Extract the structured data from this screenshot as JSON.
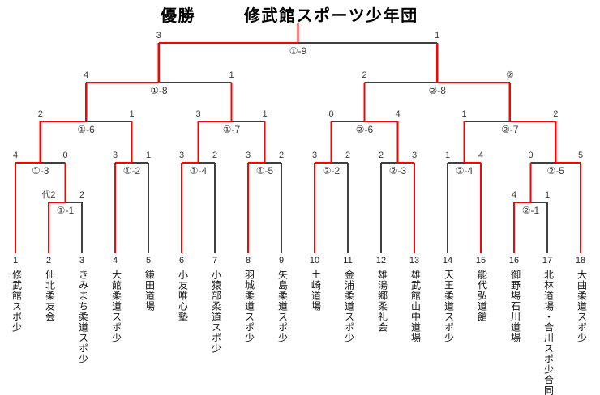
{
  "title": {
    "champion_label": "優勝",
    "champion_name": "修武館スポーツ少年団"
  },
  "colors": {
    "winner_path": "#ff0000",
    "line": "#3f3f3f"
  },
  "teams": [
    {
      "no": "1",
      "name": "修武館スポ少"
    },
    {
      "no": "2",
      "name": "仙北柔友会"
    },
    {
      "no": "3",
      "name": "きみまち柔道スポ少"
    },
    {
      "no": "4",
      "name": "大館柔道スポ少"
    },
    {
      "no": "5",
      "name": "鎌田道場"
    },
    {
      "no": "6",
      "name": "小友唯心塾"
    },
    {
      "no": "7",
      "name": "小猿部柔道スポ少"
    },
    {
      "no": "8",
      "name": "羽城柔道スポ少"
    },
    {
      "no": "9",
      "name": "矢島柔道スポ少"
    },
    {
      "no": "10",
      "name": "土崎道場"
    },
    {
      "no": "11",
      "name": "金浦柔道スポ少"
    },
    {
      "no": "12",
      "name": "雄湯郷柔礼会"
    },
    {
      "no": "13",
      "name": "雄武館山中道場"
    },
    {
      "no": "14",
      "name": "天王柔道スポ少"
    },
    {
      "no": "15",
      "name": "能代弘道館"
    },
    {
      "no": "16",
      "name": "御野場石川道場"
    },
    {
      "no": "17",
      "name": "北林道場・合川スポ少合同"
    },
    {
      "no": "18",
      "name": "大曲柔道スポ少"
    }
  ],
  "matches": [
    {
      "id": "1-1",
      "label": "①-1",
      "round": 1,
      "left": "t2",
      "right": "t3",
      "score_left": "代2",
      "score_right": "2",
      "winner": "left"
    },
    {
      "id": "2-1",
      "label": "②-1",
      "round": 1,
      "left": "t16",
      "right": "t17",
      "score_left": "4",
      "score_right": "1",
      "winner": "left"
    },
    {
      "id": "1-2",
      "label": "①-2",
      "round": 2,
      "left": "t4",
      "right": "t5",
      "score_left": "3",
      "score_right": "1",
      "winner": "left"
    },
    {
      "id": "1-3",
      "label": "①-3",
      "round": 2,
      "left": "t1",
      "right": "m:1-1",
      "score_left": "4",
      "score_right": "0",
      "winner": "left"
    },
    {
      "id": "1-4",
      "label": "①-4",
      "round": 2,
      "left": "t6",
      "right": "t7",
      "score_left": "3",
      "score_right": "2",
      "winner": "left"
    },
    {
      "id": "1-5",
      "label": "①-5",
      "round": 2,
      "left": "t8",
      "right": "t9",
      "score_left": "3",
      "score_right": "2",
      "winner": "left"
    },
    {
      "id": "2-2",
      "label": "②-2",
      "round": 2,
      "left": "t10",
      "right": "t11",
      "score_left": "3",
      "score_right": "2",
      "winner": "left"
    },
    {
      "id": "2-3",
      "label": "②-3",
      "round": 2,
      "left": "t12",
      "right": "t13",
      "score_left": "2",
      "score_right": "3",
      "winner": "right"
    },
    {
      "id": "2-4",
      "label": "②-4",
      "round": 2,
      "left": "t14",
      "right": "t15",
      "score_left": "1",
      "score_right": "4",
      "winner": "right"
    },
    {
      "id": "2-5",
      "label": "②-5",
      "round": 2,
      "left": "m:2-1",
      "right": "t18",
      "score_left": "0",
      "score_right": "5",
      "winner": "right"
    },
    {
      "id": "1-6",
      "label": "①-6",
      "round": 3,
      "left": "m:1-3",
      "right": "m:1-2",
      "score_left": "2",
      "score_right": "1",
      "winner": "left"
    },
    {
      "id": "1-7",
      "label": "①-7",
      "round": 3,
      "left": "m:1-4",
      "right": "m:1-5",
      "score_left": "3",
      "score_right": "1",
      "winner": "left"
    },
    {
      "id": "2-6",
      "label": "②-6",
      "round": 3,
      "left": "m:2-2",
      "right": "m:2-3",
      "score_left": "0",
      "score_right": "4",
      "winner": "right"
    },
    {
      "id": "2-7",
      "label": "②-7",
      "round": 3,
      "left": "m:2-4",
      "right": "m:2-5",
      "score_left": "1",
      "score_right": "2",
      "winner": "right"
    },
    {
      "id": "1-8",
      "label": "①-8",
      "round": 4,
      "left": "m:1-6",
      "right": "m:1-7",
      "score_left": "4",
      "score_right": "1",
      "winner": "left"
    },
    {
      "id": "2-8",
      "label": "②-8",
      "round": 4,
      "left": "m:2-6",
      "right": "m:2-7",
      "score_left": "2",
      "score_right": "②",
      "winner": "right"
    },
    {
      "id": "final",
      "label": "①-9",
      "round": 5,
      "left": "m:1-8",
      "right": "m:2-8",
      "score_left": "3",
      "score_right": "1",
      "winner": "left"
    }
  ]
}
